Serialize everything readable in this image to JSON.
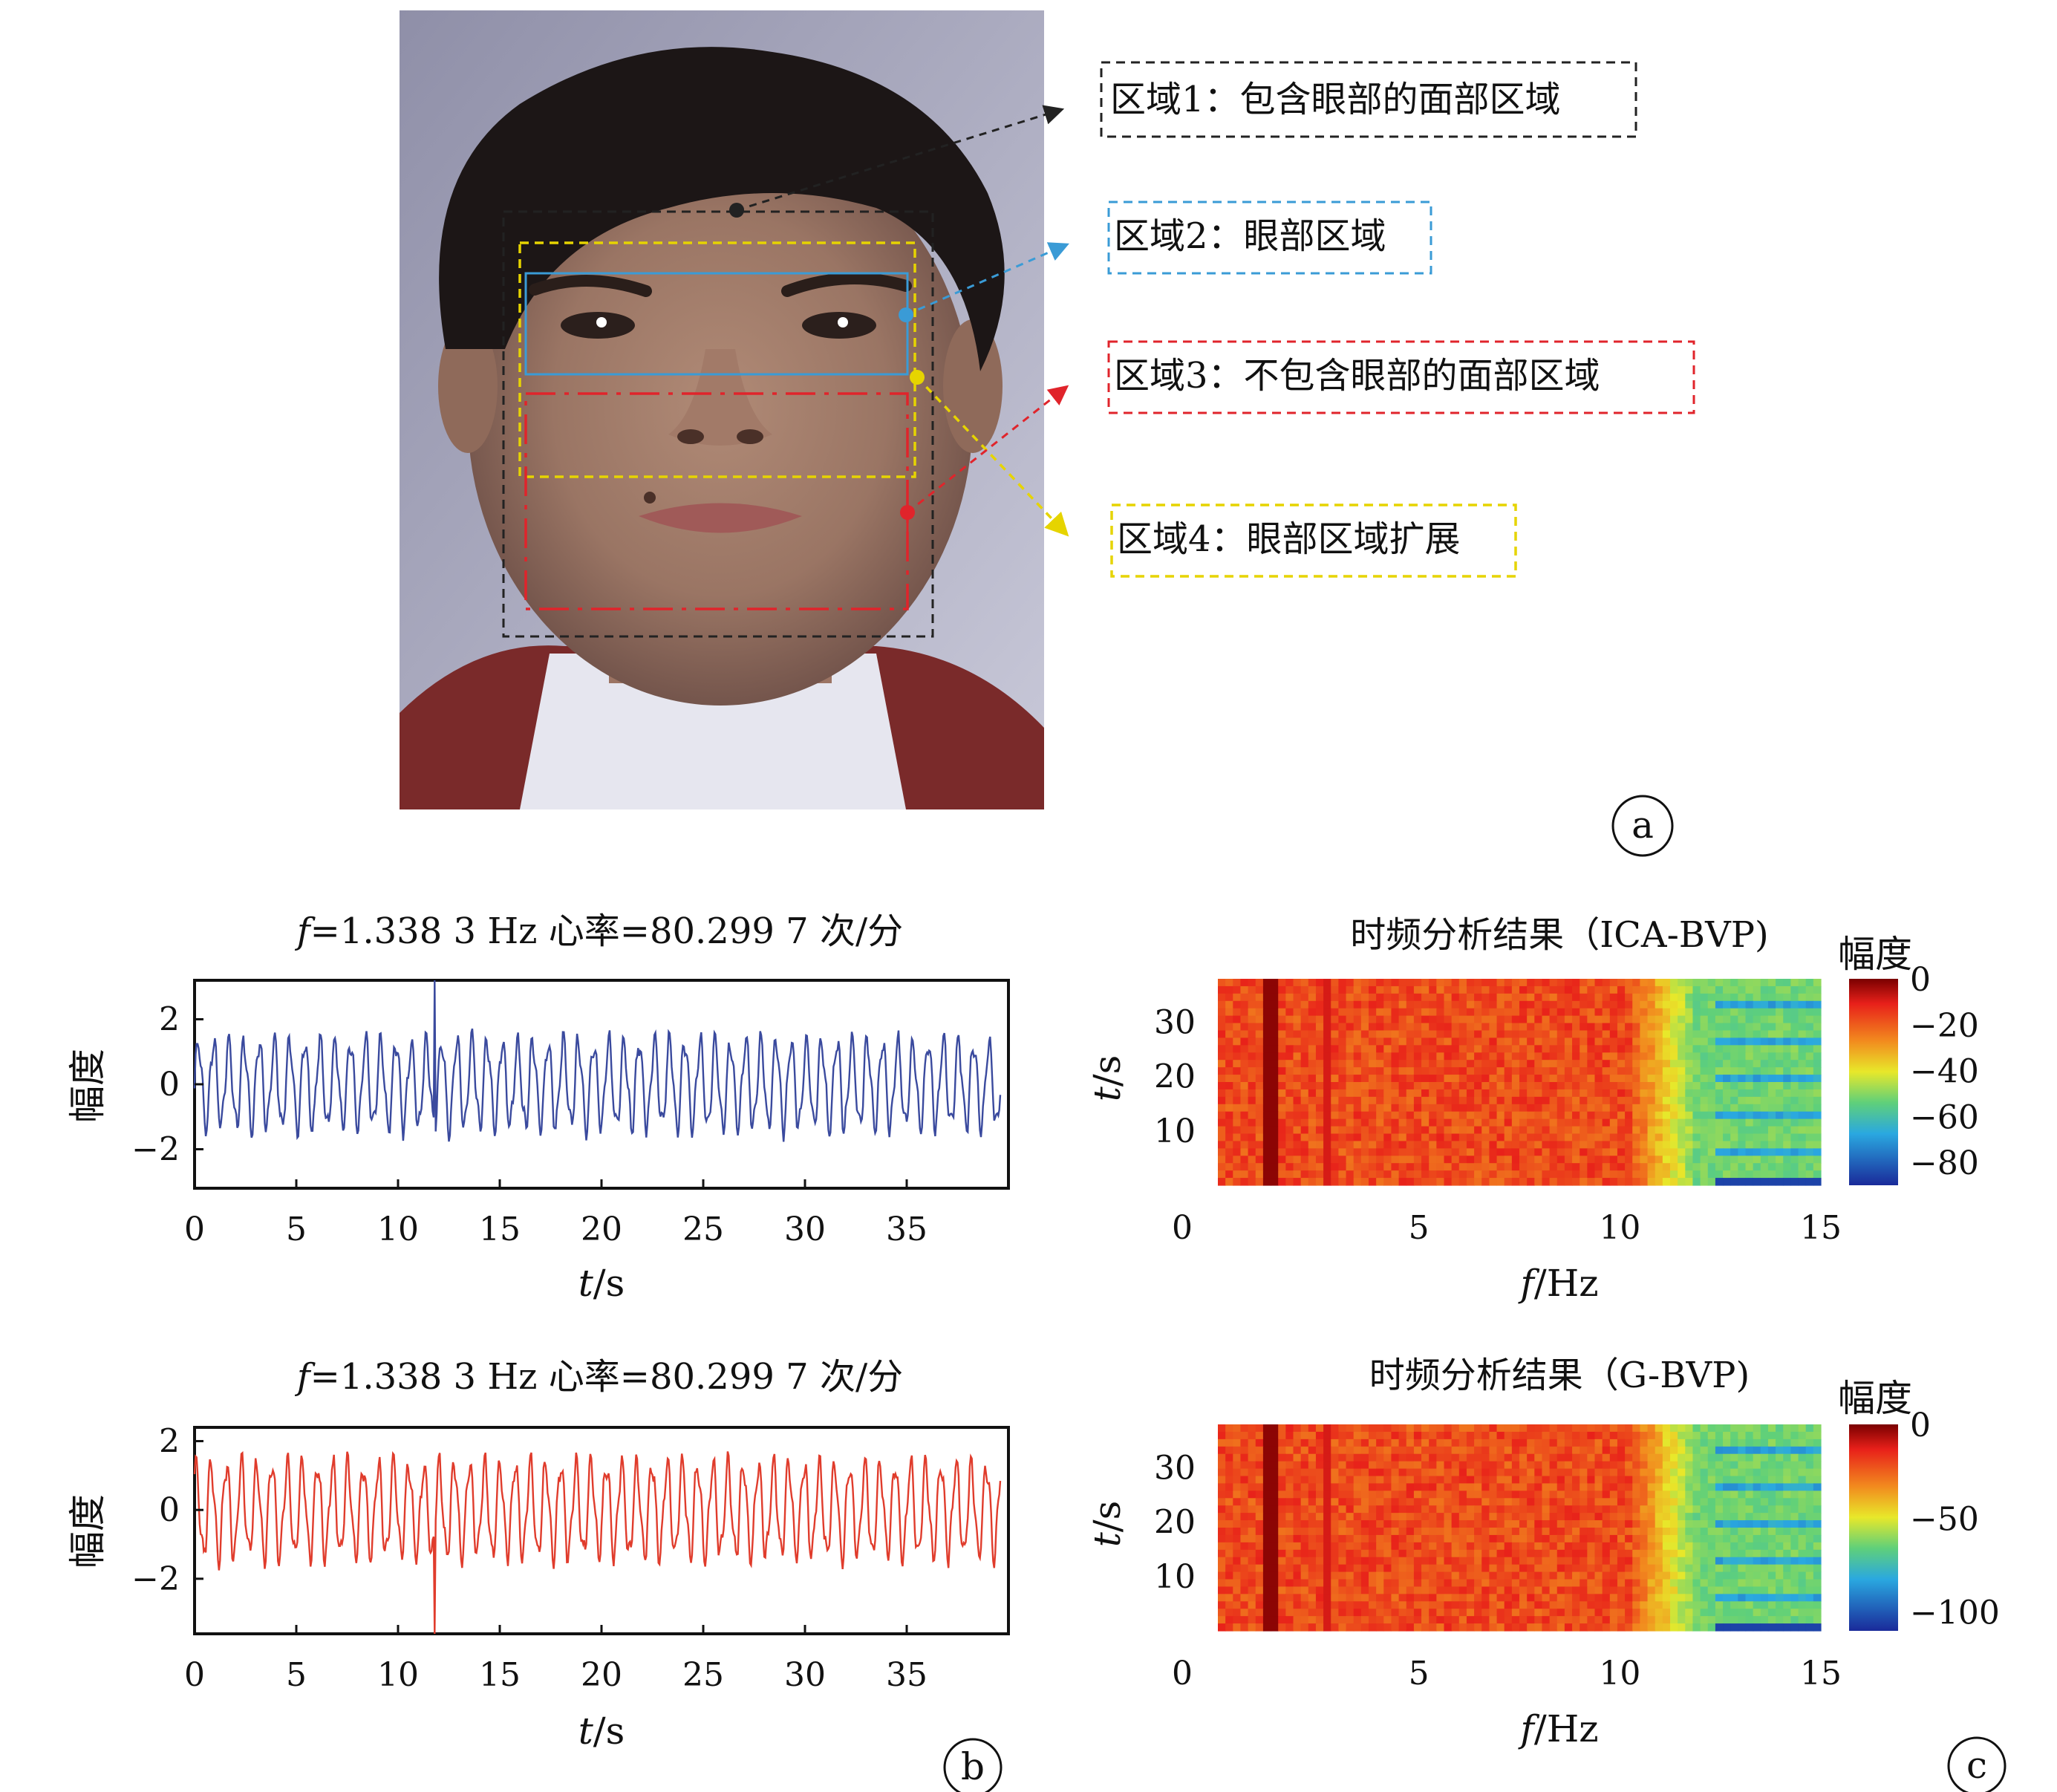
{
  "panel_labels": {
    "a": "a",
    "b": "b",
    "c": "c"
  },
  "regions": [
    {
      "label": "区域1：包含眼部的面部区域",
      "color": "#222222"
    },
    {
      "label": "区域2：眼部区域",
      "color": "#3a9bd6"
    },
    {
      "label": "区域3：不包含眼部的面部区域",
      "color": "#e0242b"
    },
    {
      "label": "区域4：眼部区域扩展",
      "color": "#e6d400"
    }
  ],
  "chart_data": [
    {
      "type": "line",
      "title_prefix": "f",
      "title": "=1.338 3 Hz  心率=80.299 7 次/分",
      "xlabel_italic": "t",
      "xlabel": "/s",
      "ylabel": "幅度",
      "xlim": [
        0,
        40
      ],
      "ylim": [
        -3.2,
        3.2
      ],
      "xticks": [
        "0",
        "5",
        "10",
        "15",
        "20",
        "25",
        "30",
        "35"
      ],
      "yticks": [
        "2",
        "0",
        "−2"
      ],
      "series": [
        {
          "color": "#3a4a9e",
          "frequency_hz": 1.3383,
          "amplitude": 1.3,
          "spike_t": 11.8,
          "spike_y": 3.2
        }
      ]
    },
    {
      "type": "line",
      "title_prefix": "f",
      "title": "=1.338 3 Hz  心率=80.299 7 次/分",
      "xlabel_italic": "t",
      "xlabel": "/s",
      "ylabel": "幅度",
      "xlim": [
        0,
        40
      ],
      "ylim": [
        -3.6,
        2.4
      ],
      "xticks": [
        "0",
        "5",
        "10",
        "15",
        "20",
        "25",
        "30",
        "35"
      ],
      "yticks": [
        "2",
        "0",
        "−2"
      ],
      "series": [
        {
          "color": "#e03c2c",
          "frequency_hz": 1.3383,
          "amplitude": 1.3,
          "spike_t": 11.8,
          "spike_y": -3.6
        }
      ]
    },
    {
      "type": "heatmap",
      "title": "时频分析结果（ICA-BVP)",
      "xlabel_italic": "f",
      "xlabel": "/Hz",
      "ylabel_italic": "t",
      "ylabel": "/s",
      "xlim": [
        0,
        15
      ],
      "ylim": [
        0,
        38
      ],
      "xticks": [
        "0",
        "5",
        "10",
        "15"
      ],
      "yticks": [
        "30",
        "20",
        "10"
      ],
      "colorbar_title": "幅度",
      "colorbar_ticks": [
        "0",
        "−20",
        "−40",
        "−60",
        "−80"
      ],
      "colorbar_range": [
        -90,
        0
      ],
      "colormap": "jet"
    },
    {
      "type": "heatmap",
      "title": "时频分析结果（G-BVP)",
      "xlabel_italic": "f",
      "xlabel": "/Hz",
      "ylabel_italic": "t",
      "ylabel": "/s",
      "xlim": [
        0,
        15
      ],
      "ylim": [
        0,
        38
      ],
      "xticks": [
        "0",
        "5",
        "10",
        "15"
      ],
      "yticks": [
        "30",
        "20",
        "10"
      ],
      "colorbar_title": "幅度",
      "colorbar_ticks": [
        "0",
        "−50",
        "−100"
      ],
      "colorbar_range": [
        -110,
        0
      ],
      "colormap": "jet"
    }
  ]
}
